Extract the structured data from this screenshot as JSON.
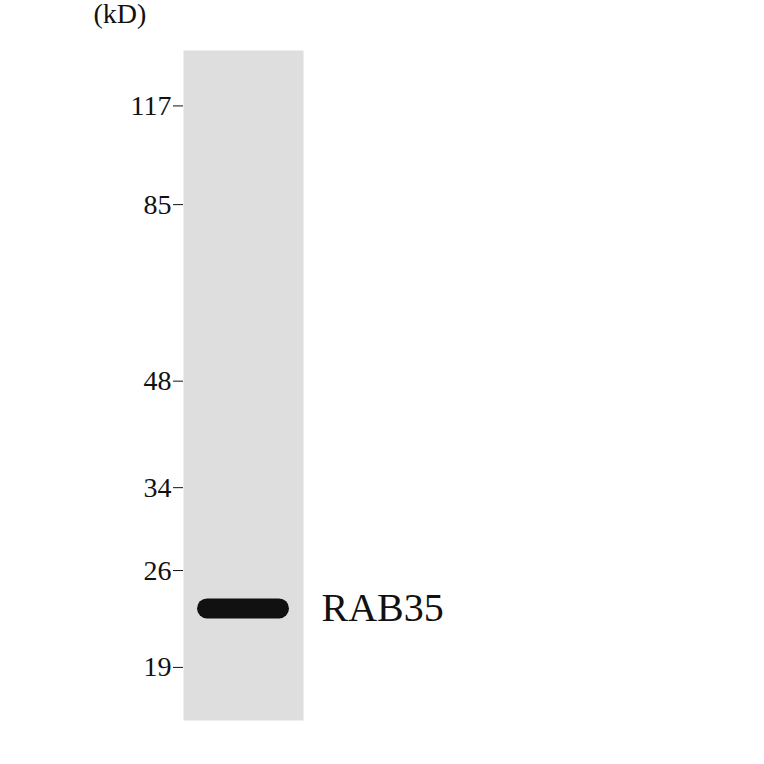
{
  "chart_data": {
    "type": "western_blot",
    "y_label": "(kD)",
    "log": "y",
    "ylim": [
      16,
      140
    ],
    "yticks": [
      19,
      26,
      34,
      48,
      85,
      117
    ],
    "bands": [
      {
        "label": "RAB35",
        "value": 23
      }
    ],
    "color": "#111111"
  }
}
